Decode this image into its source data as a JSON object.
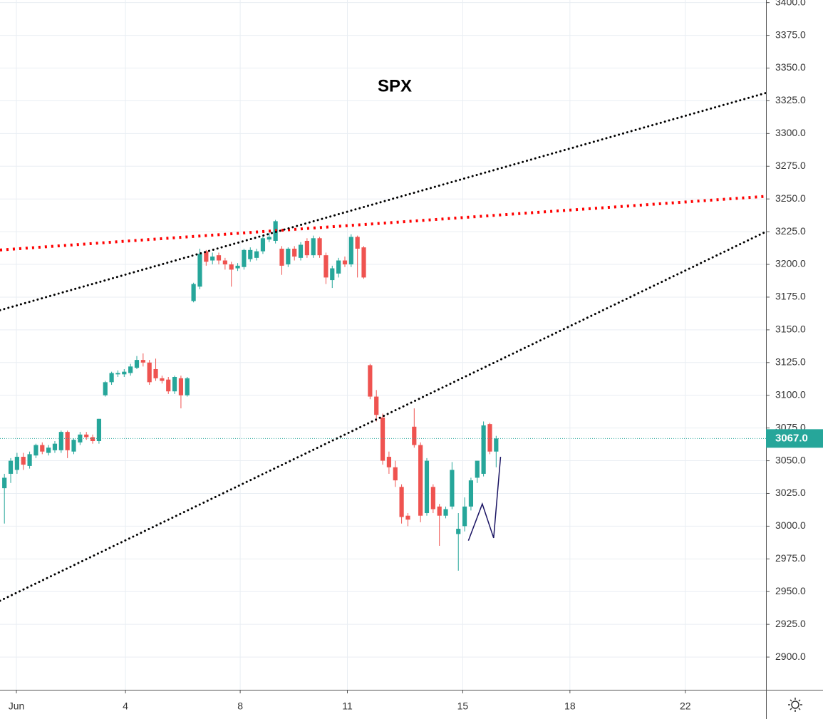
{
  "chart_data": {
    "type": "candlestick",
    "title": "SPX",
    "up_color": "#26a69a",
    "down_color": "#ef5350",
    "grid": true,
    "x": [
      0,
      1,
      2,
      3,
      4,
      5,
      6,
      7,
      8,
      9,
      10,
      11,
      12,
      13,
      14,
      15,
      16,
      17,
      18,
      19,
      20,
      21,
      22,
      23,
      24,
      25,
      26,
      27,
      28,
      29,
      30,
      31,
      32,
      33,
      34,
      35,
      36,
      37,
      38,
      39,
      40,
      41,
      42,
      43,
      44,
      45,
      46,
      47,
      48,
      49,
      50,
      51,
      52,
      53,
      54,
      55,
      56,
      57,
      58,
      59,
      60,
      61,
      62,
      63,
      64,
      65,
      66,
      67,
      68,
      69,
      70,
      71,
      72,
      73,
      74,
      75,
      76,
      77,
      78
    ],
    "open": [
      3029,
      3040,
      3043,
      3053,
      3046,
      3054,
      3062,
      3056,
      3058,
      3058,
      3072,
      3057,
      3064,
      3070,
      3068,
      3065,
      3100,
      3110,
      3116,
      3116,
      3117,
      3121,
      3127,
      3125,
      3120,
      3113,
      3112,
      3103,
      3113,
      3100,
      3172,
      3183,
      3210,
      3203,
      3207,
      3203,
      3200,
      3197,
      3198,
      3204,
      3205,
      3210,
      3219,
      3218,
      3212,
      3200,
      3212,
      3205,
      3218,
      3207,
      3220,
      3207,
      3188,
      3193,
      3203,
      3200,
      3221,
      3213,
      3123,
      3099,
      3083,
      3053,
      3045,
      3030,
      3008,
      3076,
      3062,
      3010,
      3030,
      3015,
      3008,
      3015,
      2994,
      3000,
      3015,
      3037,
      3040,
      3078,
      3057
    ],
    "high": [
      3040,
      3052,
      3056,
      3056,
      3057,
      3063,
      3064,
      3062,
      3065,
      3073,
      3073,
      3067,
      3072,
      3072,
      3070,
      3082,
      3111,
      3118,
      3119,
      3120,
      3124,
      3130,
      3132,
      3127,
      3128,
      3115,
      3114,
      3115,
      3115,
      3114,
      3186,
      3212,
      3211,
      3209,
      3209,
      3205,
      3202,
      3201,
      3212,
      3213,
      3212,
      3222,
      3224,
      3234,
      3214,
      3213,
      3214,
      3217,
      3220,
      3222,
      3221,
      3209,
      3199,
      3205,
      3206,
      3223,
      3222,
      3214,
      3124,
      3104,
      3086,
      3057,
      3050,
      3032,
      3010,
      3090,
      3064,
      3052,
      3032,
      3017,
      3015,
      3049,
      3010,
      3022,
      3037,
      3050,
      3080,
      3079,
      3069
    ],
    "low": [
      3002,
      3033,
      3040,
      3043,
      3044,
      3052,
      3055,
      3054,
      3056,
      3056,
      3052,
      3055,
      3062,
      3066,
      3063,
      3063,
      3099,
      3108,
      3114,
      3114,
      3115,
      3120,
      3122,
      3108,
      3111,
      3109,
      3101,
      3101,
      3090,
      3099,
      3171,
      3181,
      3199,
      3200,
      3200,
      3196,
      3183,
      3195,
      3196,
      3202,
      3203,
      3208,
      3217,
      3216,
      3192,
      3198,
      3203,
      3203,
      3205,
      3205,
      3205,
      3185,
      3182,
      3190,
      3198,
      3198,
      3190,
      3189,
      3097,
      3080,
      3047,
      3040,
      3030,
      3002,
      3000,
      3060,
      3003,
      3008,
      3010,
      2985,
      3006,
      3013,
      2966,
      2996,
      3012,
      3033,
      3038,
      3055,
      3045
    ],
    "close": [
      3037,
      3050,
      3053,
      3047,
      3055,
      3062,
      3057,
      3060,
      3063,
      3072,
      3058,
      3066,
      3070,
      3068,
      3065,
      3082,
      3110,
      3117,
      3117,
      3118,
      3122,
      3127,
      3125,
      3110,
      3113,
      3111,
      3103,
      3114,
      3100,
      3113,
      3185,
      3208,
      3202,
      3206,
      3203,
      3200,
      3196,
      3199,
      3211,
      3211,
      3210,
      3220,
      3221,
      3233,
      3199,
      3212,
      3206,
      3215,
      3207,
      3220,
      3207,
      3190,
      3197,
      3203,
      3200,
      3221,
      3212,
      3190,
      3099,
      3085,
      3050,
      3045,
      3035,
      3007,
      3005,
      3062,
      3008,
      3050,
      3013,
      3008,
      3013,
      3043,
      2998,
      3015,
      3035,
      3050,
      3077,
      3057,
      3067
    ],
    "xlim": [
      -0.7,
      120.8
    ],
    "xticks": [
      {
        "value": 1.9,
        "label": "Jun"
      },
      {
        "value": 19.2,
        "label": "4"
      },
      {
        "value": 37.4,
        "label": "8"
      },
      {
        "value": 54.4,
        "label": "11"
      },
      {
        "value": 72.7,
        "label": "15"
      },
      {
        "value": 89.7,
        "label": "18"
      },
      {
        "value": 108.0,
        "label": "22"
      }
    ],
    "ylim": [
      2875,
      3402
    ],
    "yticks": [
      {
        "value": 2900,
        "label": "2900.0"
      },
      {
        "value": 2925,
        "label": "2925.0"
      },
      {
        "value": 2950,
        "label": "2950.0"
      },
      {
        "value": 2975,
        "label": "2975.0"
      },
      {
        "value": 3000,
        "label": "3000.0"
      },
      {
        "value": 3025,
        "label": "3025.0"
      },
      {
        "value": 3050,
        "label": "3050.0"
      },
      {
        "value": 3075,
        "label": "3075.0"
      },
      {
        "value": 3100,
        "label": "3100.0"
      },
      {
        "value": 3125,
        "label": "3125.0"
      },
      {
        "value": 3150,
        "label": "3150.0"
      },
      {
        "value": 3175,
        "label": "3175.0"
      },
      {
        "value": 3200,
        "label": "3200.0"
      },
      {
        "value": 3225,
        "label": "3225.0"
      },
      {
        "value": 3250,
        "label": "3250.0"
      },
      {
        "value": 3275,
        "label": "3275.0"
      },
      {
        "value": 3300,
        "label": "3300.0"
      },
      {
        "value": 3325,
        "label": "3325.0"
      },
      {
        "value": 3350,
        "label": "3350.0"
      },
      {
        "value": 3375,
        "label": "3375.0"
      },
      {
        "value": 3400,
        "label": "3400.0"
      }
    ],
    "last_price": {
      "value": 3067,
      "label": "3067.0",
      "color": "#26a69a"
    },
    "trend_lines": [
      {
        "color": "#ff0000",
        "style": "dotted",
        "width": 4,
        "x": [
          -0.7,
          120.8
        ],
        "y": [
          3211,
          3252
        ]
      },
      {
        "color": "#000000",
        "style": "dotted",
        "width": 3,
        "x": [
          -0.7,
          120.8
        ],
        "y": [
          3165,
          3331
        ]
      },
      {
        "color": "#000000",
        "style": "dotted",
        "width": 3,
        "x": [
          -0.7,
          120.8
        ],
        "y": [
          2943,
          3225
        ]
      },
      {
        "color": "#1a1463",
        "style": "solid",
        "width": 1.5,
        "x": [
          73.6,
          75.8,
          77.6,
          78.7
        ],
        "y": [
          2989,
          3017,
          2991,
          3053
        ]
      }
    ]
  }
}
